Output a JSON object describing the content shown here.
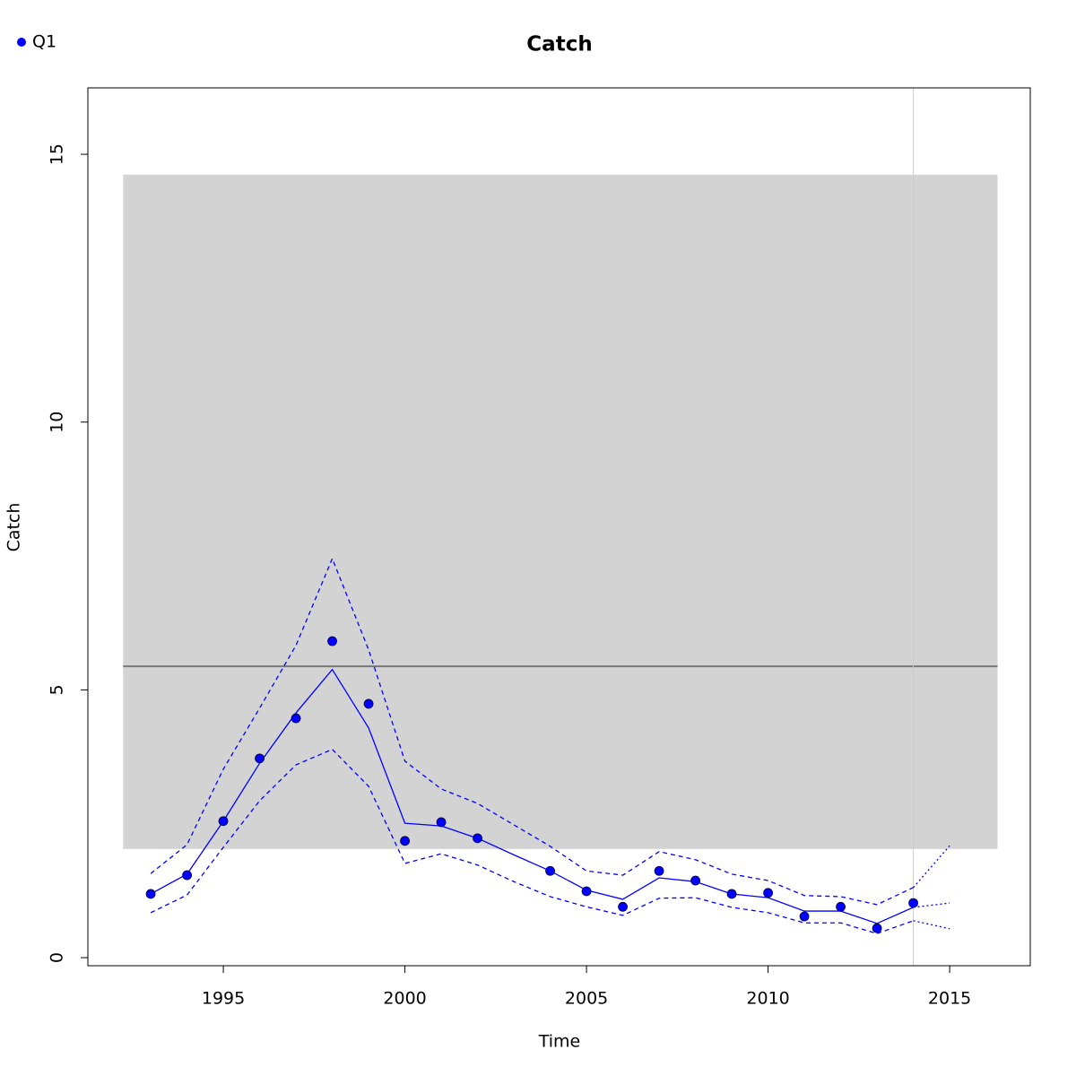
{
  "chart_data": {
    "type": "line",
    "title": "Catch",
    "xlabel": "Time",
    "ylabel": "Catch",
    "x": [
      1993,
      1994,
      1995,
      1996,
      1997,
      1998,
      1999,
      2000,
      2001,
      2002,
      2003,
      2004,
      2005,
      2006,
      2007,
      2008,
      2009,
      2010,
      2011,
      2012,
      2013,
      2014,
      2015
    ],
    "series": [
      {
        "name": "Q1",
        "color": "#0000ff",
        "values": [
          1.19,
          1.54,
          2.55,
          3.72,
          4.47,
          5.91,
          4.74,
          2.18,
          2.53,
          2.23,
          null,
          1.62,
          1.24,
          0.95,
          1.62,
          1.44,
          1.19,
          1.21,
          0.77,
          0.95,
          0.55,
          1.02,
          null
        ]
      }
    ],
    "fit": {
      "values": [
        1.19,
        1.56,
        2.55,
        3.63,
        4.57,
        5.38,
        4.29,
        2.51,
        2.46,
        2.23,
        1.92,
        1.62,
        1.26,
        1.09,
        1.49,
        1.42,
        1.19,
        1.12,
        0.87,
        0.87,
        0.64,
        0.94,
        1.02
      ]
    },
    "upper": {
      "values": [
        1.57,
        2.11,
        3.52,
        4.66,
        5.83,
        7.45,
        5.75,
        3.67,
        3.15,
        2.88,
        2.48,
        2.08,
        1.62,
        1.54,
        1.98,
        1.83,
        1.56,
        1.44,
        1.16,
        1.14,
        0.99,
        1.31,
        2.09
      ]
    },
    "lower": {
      "values": [
        0.84,
        1.17,
        2.06,
        2.93,
        3.6,
        3.89,
        3.2,
        1.76,
        1.94,
        1.73,
        1.42,
        1.14,
        0.95,
        0.79,
        1.11,
        1.12,
        0.94,
        0.84,
        0.65,
        0.65,
        0.45,
        0.69,
        0.54
      ]
    },
    "band": {
      "xlim": [
        1992.24,
        2016.32
      ],
      "ylim": [
        2.03,
        14.62
      ],
      "color": "#d3d3d3"
    },
    "hline": 5.44,
    "vline": 2014,
    "xlim": [
      1991.27,
      2017.22
    ],
    "ylim": [
      -0.15,
      16.24
    ],
    "xticks": [
      1995,
      2000,
      2005,
      2010,
      2015
    ],
    "yticks": [
      0,
      5,
      10,
      15
    ]
  }
}
